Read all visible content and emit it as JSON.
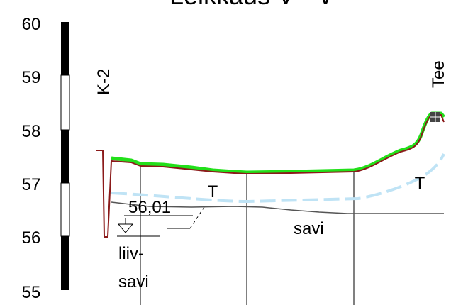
{
  "title": "Leikkaus V - V",
  "elevation_scale": {
    "ticks": [
      "60",
      "59",
      "58",
      "57",
      "56",
      "55"
    ],
    "bar_colors": [
      "#000000",
      "#ffffff"
    ]
  },
  "labels": {
    "borehole": "K-2",
    "road": "Tee",
    "layer_t_left": "T",
    "layer_t_right": "T",
    "water_level": "56,01",
    "clay": "savi",
    "silt_clay_line1": "liiv-",
    "silt_clay_line2": "savi"
  },
  "colors": {
    "ground_surface": "#22e01a",
    "design_line": "#8b1a1a",
    "frost_line": "#bfe3f5",
    "soil_boundary": "#555555"
  }
}
